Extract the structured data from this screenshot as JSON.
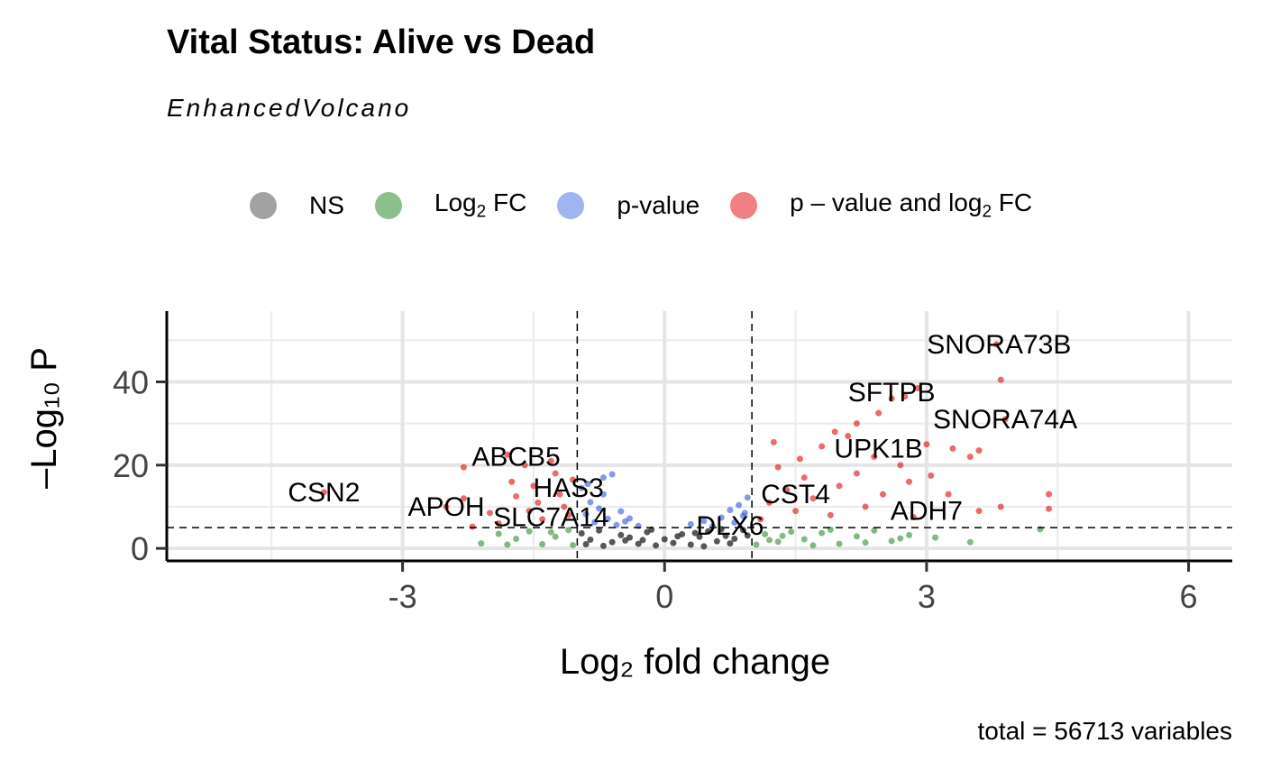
{
  "title": "Vital Status: Alive vs Dead",
  "subtitle": "EnhancedVolcano",
  "caption": "total = 56713 variables",
  "legend": {
    "items": [
      {
        "label": "NS",
        "color": "#888888"
      },
      {
        "label_main": "Log",
        "label_sub": "2",
        "label_tail": " FC",
        "color": "#2e8b2e"
      },
      {
        "label": "p-value",
        "color": "#4169e1"
      },
      {
        "label_main": "p – value and log",
        "label_sub": "2",
        "label_tail": " FC",
        "color": "#e31a1c"
      }
    ]
  },
  "chart_data": {
    "type": "scatter",
    "title": "Vital Status: Alive vs Dead",
    "subtitle": "EnhancedVolcano",
    "xlabel": "Log₂ fold change",
    "ylabel": "–Log₁₀ P",
    "xlim": [
      -5.7,
      6.5
    ],
    "ylim": [
      -3,
      57
    ],
    "x_ticks": [
      -3,
      0,
      3,
      6
    ],
    "x_tick_labels": [
      "-3",
      "0",
      "3",
      "6"
    ],
    "y_ticks": [
      0,
      20,
      40
    ],
    "y_tick_labels": [
      "0",
      "20",
      "40"
    ],
    "grid": true,
    "fc_cutoff": 1.0,
    "p_cutoff_neglog10": 5.0,
    "legend_position": "top",
    "colors": {
      "ns": "#3a3a3a",
      "fc": "#2e8b2e",
      "p": "#2f55e0",
      "both": "#e31a1c"
    },
    "series": [
      {
        "name": "NS",
        "points": [
          [
            -0.95,
            3.6
          ],
          [
            -0.85,
            2.1
          ],
          [
            -0.75,
            4.3
          ],
          [
            -0.6,
            1.5
          ],
          [
            -0.5,
            3.2
          ],
          [
            -0.4,
            2.6
          ],
          [
            -0.3,
            1.1
          ],
          [
            -0.2,
            3.9
          ],
          [
            -0.1,
            0.7
          ],
          [
            0.0,
            2.2
          ],
          [
            0.1,
            1.3
          ],
          [
            0.2,
            3.4
          ],
          [
            0.3,
            0.9
          ],
          [
            0.4,
            2.8
          ],
          [
            0.5,
            4.1
          ],
          [
            0.6,
            1.7
          ],
          [
            0.7,
            3.0
          ],
          [
            0.8,
            2.3
          ],
          [
            0.9,
            4.4
          ],
          [
            -0.7,
            0.6
          ],
          [
            -0.45,
            1.9
          ],
          [
            -0.15,
            4.5
          ],
          [
            0.15,
            2.9
          ],
          [
            0.45,
            0.5
          ],
          [
            0.75,
            1.2
          ],
          [
            0.95,
            3.1
          ],
          [
            -0.9,
            1.0
          ],
          [
            -0.25,
            2.0
          ],
          [
            0.35,
            3.7
          ],
          [
            0.65,
            4.6
          ]
        ]
      },
      {
        "name": "Log2 FC",
        "points": [
          [
            -2.1,
            1.2
          ],
          [
            -1.9,
            3.5
          ],
          [
            -1.7,
            2.3
          ],
          [
            -1.55,
            4.1
          ],
          [
            -1.4,
            1.0
          ],
          [
            -1.25,
            2.8
          ],
          [
            -1.1,
            4.4
          ],
          [
            -1.05,
            0.8
          ],
          [
            -1.8,
            0.9
          ],
          [
            -1.3,
            3.9
          ],
          [
            1.05,
            0.9
          ],
          [
            1.15,
            3.4
          ],
          [
            1.3,
            1.6
          ],
          [
            1.45,
            4.0
          ],
          [
            1.6,
            2.2
          ],
          [
            1.8,
            3.7
          ],
          [
            2.0,
            1.1
          ],
          [
            2.2,
            2.9
          ],
          [
            2.4,
            4.3
          ],
          [
            2.6,
            1.8
          ],
          [
            2.8,
            3.2
          ],
          [
            3.1,
            2.6
          ],
          [
            3.5,
            1.5
          ],
          [
            4.3,
            4.6
          ],
          [
            1.2,
            2.0
          ],
          [
            1.7,
            0.7
          ],
          [
            2.3,
            1.4
          ],
          [
            2.7,
            2.4
          ],
          [
            1.9,
            4.5
          ],
          [
            1.35,
            3.0
          ]
        ]
      },
      {
        "name": "p-value",
        "points": [
          [
            -0.95,
            14.5
          ],
          [
            -0.9,
            8.2
          ],
          [
            -0.85,
            11.1
          ],
          [
            -0.8,
            6.3
          ],
          [
            -0.75,
            9.6
          ],
          [
            -0.7,
            13.0
          ],
          [
            -0.65,
            7.1
          ],
          [
            -0.6,
            17.8
          ],
          [
            -0.55,
            5.6
          ],
          [
            -0.5,
            8.9
          ],
          [
            -0.45,
            6.5
          ],
          [
            -0.4,
            7.2
          ],
          [
            -0.3,
            5.4
          ],
          [
            0.3,
            5.8
          ],
          [
            0.45,
            6.6
          ],
          [
            0.55,
            5.3
          ],
          [
            0.65,
            7.4
          ],
          [
            0.75,
            9.2
          ],
          [
            0.8,
            6.2
          ],
          [
            0.85,
            10.4
          ],
          [
            0.9,
            7.8
          ],
          [
            0.95,
            12.2
          ],
          [
            -0.7,
            17.0
          ],
          [
            -0.88,
            15.5
          ],
          [
            0.92,
            8.5
          ]
        ]
      },
      {
        "name": "p – value and log2 FC",
        "points": [
          [
            -2.3,
            19.5
          ],
          [
            -2.3,
            12.0
          ],
          [
            -2.2,
            5.2
          ],
          [
            -2.0,
            8.5
          ],
          [
            -1.9,
            6.0
          ],
          [
            -1.8,
            22.5
          ],
          [
            -1.75,
            16.0
          ],
          [
            -1.7,
            12.5
          ],
          [
            -1.6,
            20.0
          ],
          [
            -1.55,
            9.0
          ],
          [
            -1.5,
            15.0
          ],
          [
            -1.45,
            11.0
          ],
          [
            -1.4,
            7.0
          ],
          [
            -1.3,
            21.0
          ],
          [
            -1.25,
            18.0
          ],
          [
            -1.2,
            13.0
          ],
          [
            -1.15,
            10.0
          ],
          [
            -1.1,
            8.0
          ],
          [
            -1.05,
            16.5
          ],
          [
            -3.9,
            13.5
          ],
          [
            -2.5,
            10.0
          ],
          [
            1.1,
            7.0
          ],
          [
            1.2,
            11.0
          ],
          [
            1.3,
            19.5
          ],
          [
            1.4,
            14.0
          ],
          [
            1.5,
            9.0
          ],
          [
            1.6,
            17.0
          ],
          [
            1.7,
            12.0
          ],
          [
            1.8,
            24.5
          ],
          [
            1.9,
            8.0
          ],
          [
            2.0,
            15.0
          ],
          [
            2.1,
            27.0
          ],
          [
            2.2,
            18.0
          ],
          [
            2.3,
            10.0
          ],
          [
            2.4,
            22.0
          ],
          [
            2.5,
            13.0
          ],
          [
            2.6,
            36.0
          ],
          [
            2.7,
            20.0
          ],
          [
            2.8,
            16.0
          ],
          [
            2.9,
            38.5
          ],
          [
            3.0,
            25.0
          ],
          [
            3.05,
            17.5
          ],
          [
            3.3,
            24.0
          ],
          [
            3.5,
            22.0
          ],
          [
            3.6,
            23.5
          ],
          [
            3.85,
            40.5
          ],
          [
            3.8,
            49.0
          ],
          [
            3.85,
            10.0
          ],
          [
            3.9,
            31.0
          ],
          [
            4.4,
            13.0
          ],
          [
            4.4,
            9.5
          ],
          [
            3.6,
            9.0
          ],
          [
            2.85,
            7.5
          ],
          [
            1.25,
            25.5
          ],
          [
            2.2,
            30.0
          ],
          [
            2.45,
            32.5
          ],
          [
            1.95,
            28.0
          ],
          [
            2.75,
            36.5
          ],
          [
            3.25,
            13.0
          ],
          [
            1.55,
            21.5
          ]
        ]
      }
    ],
    "labels": [
      {
        "text": "SNORA73B",
        "x": 3.83,
        "y": 49.0
      },
      {
        "text": "SFTPB",
        "x": 2.6,
        "y": 37.5
      },
      {
        "text": "SNORA74A",
        "x": 3.9,
        "y": 31.0
      },
      {
        "text": "UPK1B",
        "x": 2.45,
        "y": 24.0
      },
      {
        "text": "ABCB5",
        "x": -1.7,
        "y": 22.0
      },
      {
        "text": "CSN2",
        "x": -3.9,
        "y": 13.5
      },
      {
        "text": "HAS3",
        "x": -1.1,
        "y": 14.5
      },
      {
        "text": "CST4",
        "x": 1.5,
        "y": 13.0
      },
      {
        "text": "APOH",
        "x": -2.5,
        "y": 10.0
      },
      {
        "text": "ADH7",
        "x": 3.0,
        "y": 9.0
      },
      {
        "text": "SLC7A14",
        "x": -1.3,
        "y": 7.5
      },
      {
        "text": "DLX6",
        "x": 0.75,
        "y": 5.5
      }
    ]
  }
}
